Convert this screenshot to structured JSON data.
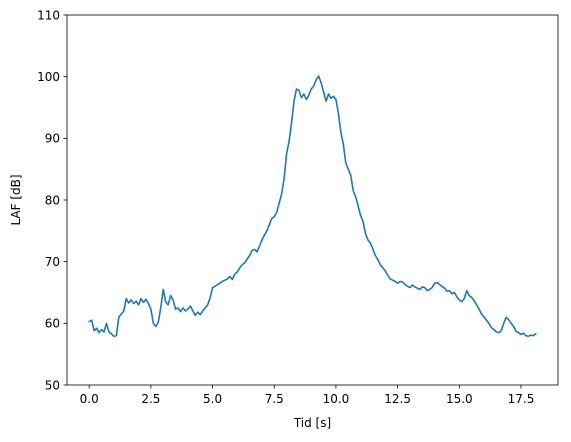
{
  "chart_data": {
    "type": "line",
    "title": "",
    "xlabel": "Tid [s]",
    "ylabel": "LAF [dB]",
    "xlim": [
      -0.9,
      19.0
    ],
    "ylim": [
      50,
      110
    ],
    "xticks": [
      0.0,
      2.5,
      5.0,
      7.5,
      10.0,
      12.5,
      15.0,
      17.5
    ],
    "xtick_labels": [
      "0.0",
      "2.5",
      "5.0",
      "7.5",
      "10.0",
      "12.5",
      "15.0",
      "17.5"
    ],
    "yticks": [
      50,
      60,
      70,
      80,
      90,
      100,
      110
    ],
    "ytick_labels": [
      "50",
      "60",
      "70",
      "80",
      "90",
      "100",
      "110"
    ],
    "grid": false,
    "legend": "none",
    "series": [
      {
        "color": "#1f77b4",
        "x": [
          0.0,
          0.1,
          0.2,
          0.3,
          0.4,
          0.5,
          0.6,
          0.7,
          0.8,
          0.9,
          1.0,
          1.1,
          1.2,
          1.3,
          1.4,
          1.5,
          1.6,
          1.7,
          1.8,
          1.9,
          2.0,
          2.1,
          2.2,
          2.3,
          2.4,
          2.5,
          2.6,
          2.7,
          2.8,
          2.9,
          3.0,
          3.1,
          3.2,
          3.3,
          3.4,
          3.5,
          3.6,
          3.7,
          3.8,
          3.9,
          4.0,
          4.1,
          4.2,
          4.3,
          4.4,
          4.5,
          4.6,
          4.7,
          4.8,
          4.9,
          5.0,
          5.1,
          5.2,
          5.3,
          5.4,
          5.5,
          5.6,
          5.7,
          5.8,
          5.9,
          6.0,
          6.1,
          6.2,
          6.3,
          6.4,
          6.5,
          6.6,
          6.7,
          6.8,
          6.9,
          7.0,
          7.1,
          7.2,
          7.3,
          7.4,
          7.5,
          7.6,
          7.7,
          7.8,
          7.9,
          8.0,
          8.1,
          8.2,
          8.3,
          8.4,
          8.5,
          8.6,
          8.7,
          8.8,
          8.9,
          9.0,
          9.1,
          9.2,
          9.3,
          9.4,
          9.5,
          9.6,
          9.7,
          9.8,
          9.9,
          10.0,
          10.1,
          10.2,
          10.3,
          10.4,
          10.5,
          10.6,
          10.7,
          10.8,
          10.9,
          11.0,
          11.1,
          11.2,
          11.3,
          11.4,
          11.5,
          11.6,
          11.7,
          11.8,
          11.9,
          12.0,
          12.1,
          12.2,
          12.3,
          12.4,
          12.5,
          12.6,
          12.7,
          12.8,
          12.9,
          13.0,
          13.1,
          13.2,
          13.3,
          13.4,
          13.5,
          13.6,
          13.7,
          13.8,
          13.9,
          14.0,
          14.1,
          14.2,
          14.3,
          14.4,
          14.5,
          14.6,
          14.7,
          14.8,
          14.9,
          15.0,
          15.1,
          15.2,
          15.3,
          15.4,
          15.5,
          15.6,
          15.7,
          15.8,
          15.9,
          16.0,
          16.1,
          16.2,
          16.3,
          16.4,
          16.5,
          16.6,
          16.7,
          16.8,
          16.9,
          17.0,
          17.1,
          17.2,
          17.3,
          17.4,
          17.5,
          17.6,
          17.7,
          17.8,
          17.9,
          18.0,
          18.1
        ],
        "values": [
          60.3,
          60.5,
          58.8,
          59.2,
          58.5,
          59.0,
          58.6,
          60.0,
          58.6,
          58.3,
          57.9,
          58.0,
          61.0,
          61.5,
          62.0,
          64.0,
          63.3,
          63.8,
          63.2,
          63.6,
          63.0,
          64.0,
          63.4,
          63.9,
          63.2,
          62.3,
          60.0,
          59.5,
          60.2,
          62.5,
          65.5,
          63.5,
          63.0,
          64.5,
          63.8,
          62.3,
          62.5,
          61.9,
          62.5,
          62.0,
          62.3,
          62.8,
          62.0,
          61.3,
          61.8,
          61.4,
          62.0,
          62.5,
          63.0,
          64.1,
          65.8,
          66.0,
          66.3,
          66.5,
          66.8,
          67.0,
          67.2,
          67.6,
          67.1,
          68.0,
          68.3,
          69.0,
          69.5,
          69.8,
          70.4,
          71.0,
          71.8,
          72.0,
          71.6,
          72.5,
          73.5,
          74.3,
          75.0,
          76.0,
          77.0,
          77.3,
          78.0,
          79.5,
          81.0,
          83.5,
          87.5,
          89.5,
          92.5,
          96.0,
          98.0,
          97.8,
          96.6,
          97.2,
          96.3,
          97.0,
          98.0,
          98.5,
          99.5,
          100.1,
          99.0,
          97.5,
          96.0,
          97.2,
          96.5,
          96.8,
          96.3,
          94.0,
          91.0,
          89.0,
          86.0,
          85.0,
          84.0,
          81.5,
          80.5,
          79.0,
          77.5,
          76.5,
          74.5,
          73.5,
          73.0,
          72.0,
          71.0,
          70.3,
          69.5,
          69.0,
          68.5,
          67.8,
          67.2,
          67.0,
          66.8,
          66.5,
          66.8,
          66.7,
          66.3,
          66.0,
          65.8,
          66.2,
          65.9,
          65.7,
          65.5,
          65.9,
          65.8,
          65.3,
          65.5,
          65.8,
          66.5,
          66.6,
          66.3,
          66.0,
          65.7,
          65.2,
          65.3,
          64.8,
          65.0,
          64.3,
          63.8,
          63.5,
          64.0,
          65.3,
          64.5,
          64.2,
          63.7,
          63.0,
          62.3,
          61.5,
          61.0,
          60.5,
          60.0,
          59.3,
          59.0,
          58.6,
          58.5,
          58.8,
          60.0,
          61.0,
          60.6,
          60.0,
          59.5,
          58.7,
          58.5,
          58.2,
          58.4,
          58.0,
          57.9,
          58.1,
          58.0,
          58.3
        ]
      }
    ]
  }
}
